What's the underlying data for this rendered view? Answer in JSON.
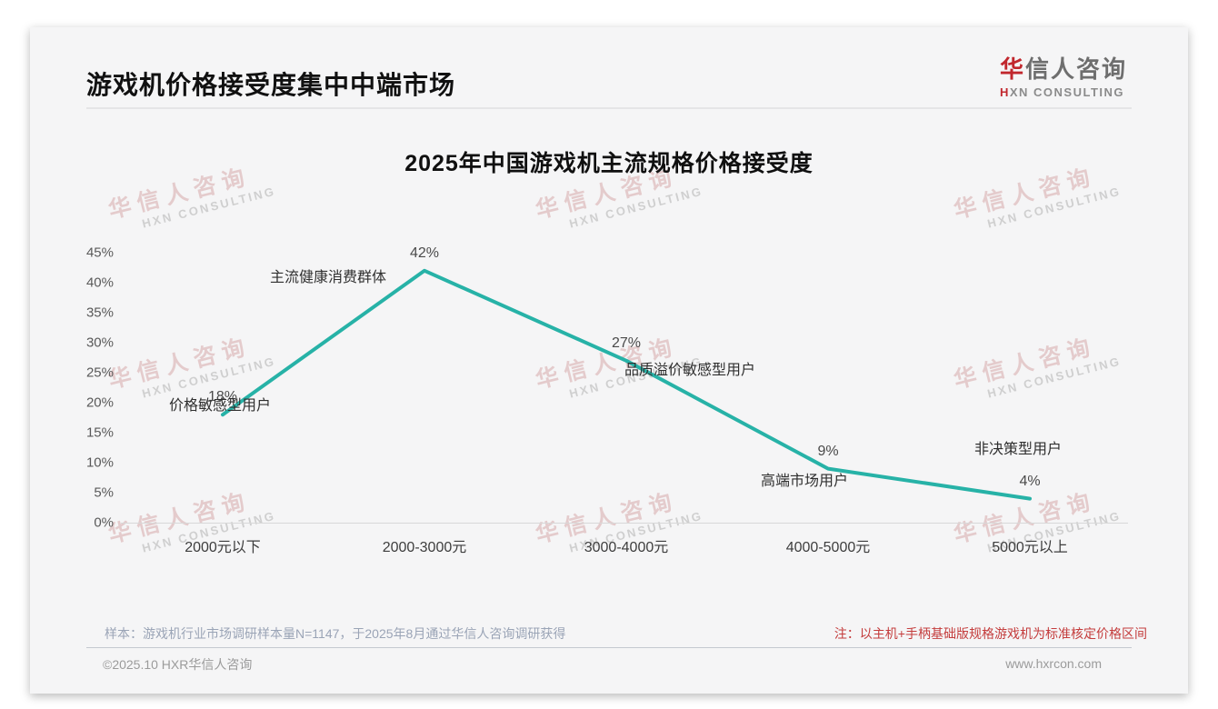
{
  "page": {
    "title": "游戏机价格接受度集中中端市场",
    "logo": {
      "cn_accent": "华",
      "cn_rest": "信人咨询",
      "en_accent": "H",
      "en_rest": "XN CONSULTING"
    },
    "watermark": {
      "line1": "华信人咨询",
      "line2": "HXN CONSULTING"
    },
    "footer": {
      "sample_note": "样本：游戏机行业市场调研样本量N=1147，于2025年8月通过华信人咨询调研获得",
      "price_note": "注：以主机+手柄基础版规格游戏机为标准核定价格区间",
      "copyright": "©2025.10 HXR华信人咨询",
      "website": "www.hxrcon.com"
    }
  },
  "colors": {
    "line": "#27b2a7",
    "logo_red": "#c1272d",
    "note_red": "#c43c3c",
    "card_bg": "#f5f5f6"
  },
  "chart_data": {
    "type": "line",
    "title": "2025年中国游戏机主流规格价格接受度",
    "categories": [
      "2000元以下",
      "2000-3000元",
      "3000-4000元",
      "4000-5000元",
      "5000元以上"
    ],
    "values": [
      18,
      42,
      27,
      9,
      4
    ],
    "value_labels": [
      "18%",
      "42%",
      "27%",
      "9%",
      "4%"
    ],
    "annotations": [
      "价格敏感型用户",
      "主流健康消费群体",
      "品质溢价敏感型用户",
      "高端市场用户",
      "非决策型用户"
    ],
    "xlabel": "",
    "ylabel": "",
    "ylim": [
      0,
      45
    ],
    "ytick_step": 5,
    "yticks": [
      "45%",
      "40%",
      "35%",
      "30%",
      "25%",
      "20%",
      "15%",
      "10%",
      "5%",
      "0%"
    ],
    "grid": false,
    "legend": false
  }
}
